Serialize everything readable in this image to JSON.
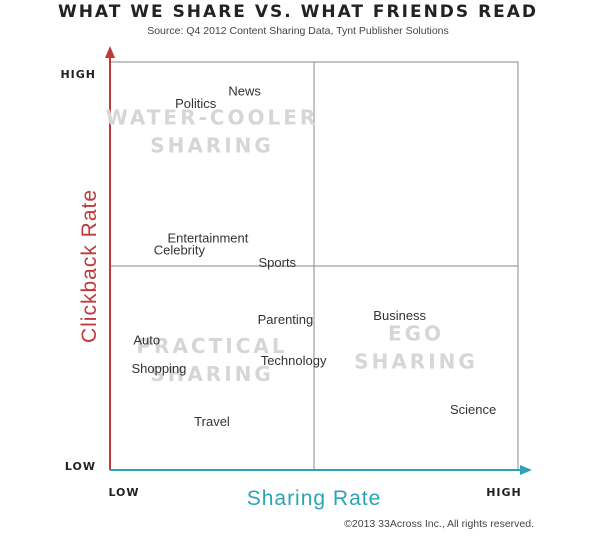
{
  "title": "WHAT WE SHARE VS. WHAT FRIENDS READ",
  "subtitle": "Source:  Q4 2012 Content Sharing Data, Tynt Publisher Solutions",
  "footer": "©2013 33Across Inc., All rights reserved.",
  "colors": {
    "y_axis": "#c0393b",
    "x_axis": "#2aa4b5",
    "grid": "#8a8a8a",
    "quadrant_label": "#d6d6d6"
  },
  "chart_data": {
    "type": "scatter",
    "title": "WHAT WE SHARE VS. WHAT FRIENDS READ",
    "subtitle": "Source:  Q4 2012 Content Sharing Data, Tynt Publisher Solutions",
    "xlabel": "Sharing Rate",
    "ylabel": "Clickback Rate",
    "x_ticks": {
      "low": "LOW",
      "high": "HIGH"
    },
    "y_ticks": {
      "low": "LOW",
      "high": "HIGH"
    },
    "xlim": [
      0,
      1
    ],
    "ylim": [
      0,
      1
    ],
    "grid": "quadrants",
    "quadrants": [
      {
        "lines": [
          "WATER-COOLER",
          "SHARING"
        ],
        "position": "top-left"
      },
      {
        "lines": [
          "PRACTICAL",
          "SHARING"
        ],
        "position": "bottom-left"
      },
      {
        "lines": [
          "EGO",
          "SHARING"
        ],
        "position": "bottom-right"
      }
    ],
    "points": [
      {
        "label": "News",
        "x": 0.33,
        "y": 0.93
      },
      {
        "label": "Politics",
        "x": 0.21,
        "y": 0.9
      },
      {
        "label": "Entertainment",
        "x": 0.24,
        "y": 0.57
      },
      {
        "label": "Celebrity",
        "x": 0.17,
        "y": 0.54
      },
      {
        "label": "Sports",
        "x": 0.41,
        "y": 0.51
      },
      {
        "label": "Parenting",
        "x": 0.43,
        "y": 0.37
      },
      {
        "label": "Business",
        "x": 0.71,
        "y": 0.38
      },
      {
        "label": "Auto",
        "x": 0.09,
        "y": 0.32
      },
      {
        "label": "Technology",
        "x": 0.45,
        "y": 0.27
      },
      {
        "label": "Shopping",
        "x": 0.12,
        "y": 0.25
      },
      {
        "label": "Science",
        "x": 0.89,
        "y": 0.15
      },
      {
        "label": "Travel",
        "x": 0.25,
        "y": 0.12
      }
    ]
  }
}
